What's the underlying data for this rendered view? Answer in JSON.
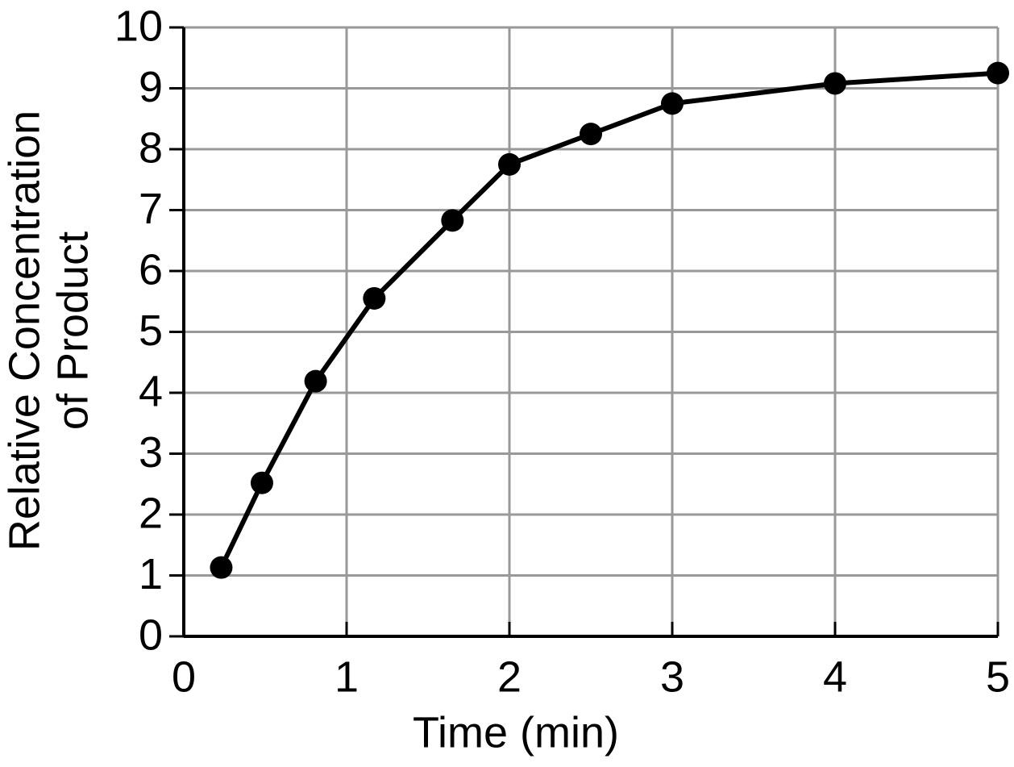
{
  "chart_data": {
    "type": "line",
    "x_label": "Time (min)",
    "y_label": [
      "Relative Concentration",
      "of Product"
    ],
    "x": [
      0.23,
      0.48,
      0.81,
      1.17,
      1.65,
      2,
      2.5,
      3,
      4,
      5
    ],
    "values": [
      1.13,
      2.52,
      4.19,
      5.55,
      6.83,
      7.75,
      8.25,
      8.75,
      9.08,
      9.25
    ],
    "color": "#000000",
    "xlim": [
      0,
      5
    ],
    "xticks": [
      0,
      1,
      2,
      3,
      4,
      5
    ],
    "ylim": [
      0,
      10
    ],
    "yticks": [
      0,
      1,
      2,
      3,
      4,
      5,
      6,
      7,
      8,
      9,
      10
    ],
    "grid": true
  }
}
